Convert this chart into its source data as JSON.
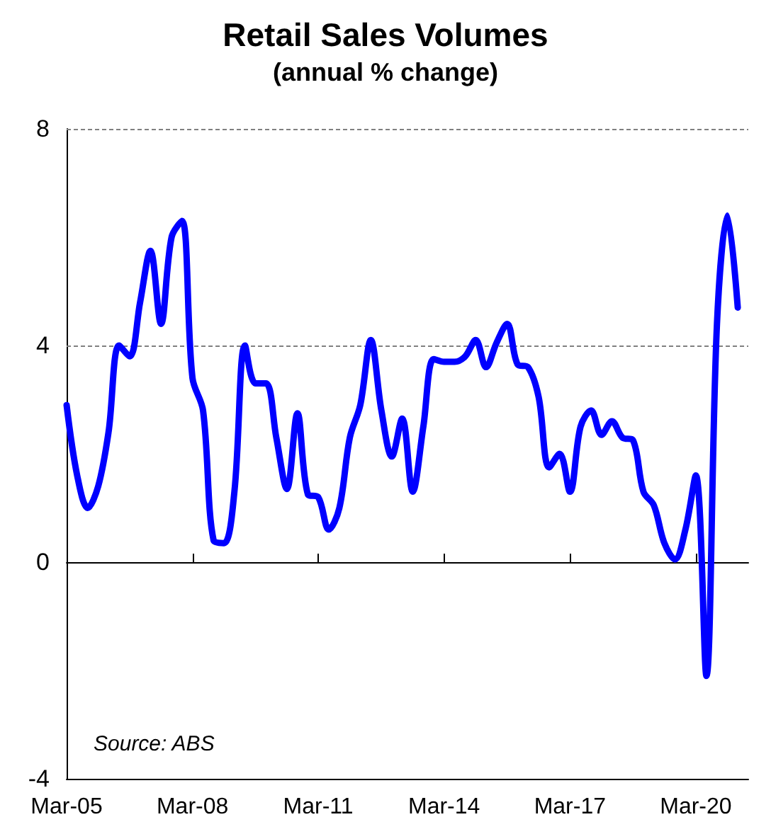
{
  "chart_data": {
    "type": "line",
    "title": "Retail Sales Volumes",
    "subtitle": "(annual % change)",
    "annotations": [
      "Source: ABS"
    ],
    "x": [
      "2005-03",
      "2005-06",
      "2005-09",
      "2005-12",
      "2006-03",
      "2006-06",
      "2006-09",
      "2006-12",
      "2007-03",
      "2007-06",
      "2007-09",
      "2007-12",
      "2008-03",
      "2008-06",
      "2008-09",
      "2008-12",
      "2009-03",
      "2009-06",
      "2009-09",
      "2009-12",
      "2010-03",
      "2010-06",
      "2010-09",
      "2010-12",
      "2011-03",
      "2011-06",
      "2011-09",
      "2011-12",
      "2012-03",
      "2012-06",
      "2012-09",
      "2012-12",
      "2013-03",
      "2013-06",
      "2013-09",
      "2013-12",
      "2014-03",
      "2014-06",
      "2014-09",
      "2014-12",
      "2015-03",
      "2015-06",
      "2015-09",
      "2015-12",
      "2016-03",
      "2016-06",
      "2016-09",
      "2016-12",
      "2017-03",
      "2017-06",
      "2017-09",
      "2017-12",
      "2018-03",
      "2018-06",
      "2018-09",
      "2018-12",
      "2019-03",
      "2019-06",
      "2019-09",
      "2019-12",
      "2020-03",
      "2020-06",
      "2020-09",
      "2020-12",
      "2021-03"
    ],
    "series": [
      {
        "color": "#0000ff",
        "values": [
          2.9,
          1.6,
          1.0,
          1.4,
          2.4,
          4.0,
          3.8,
          4.8,
          5.75,
          4.4,
          6.0,
          6.3,
          3.4,
          2.8,
          0.4,
          0.35,
          1.3,
          4.0,
          3.3,
          3.3,
          2.3,
          1.35,
          2.75,
          1.25,
          1.2,
          0.6,
          1.0,
          2.3,
          2.9,
          4.1,
          2.8,
          1.95,
          2.65,
          1.3,
          2.5,
          3.75,
          3.7,
          3.7,
          3.8,
          4.1,
          3.6,
          4.05,
          4.4,
          3.65,
          3.6,
          3.05,
          1.75,
          2.0,
          1.3,
          2.5,
          2.8,
          2.35,
          2.6,
          2.3,
          2.25,
          1.3,
          1.05,
          0.35,
          0.05,
          0.6,
          1.6,
          -2.1,
          4.4,
          6.4,
          4.7
        ]
      }
    ],
    "xlim": [
      "2005-03",
      "2021-06"
    ],
    "xticks": [
      {
        "value": "2005-03",
        "label": "Mar-05"
      },
      {
        "value": "2008-03",
        "label": "Mar-08"
      },
      {
        "value": "2011-03",
        "label": "Mar-11"
      },
      {
        "value": "2014-03",
        "label": "Mar-14"
      },
      {
        "value": "2017-03",
        "label": "Mar-17"
      },
      {
        "value": "2020-03",
        "label": "Mar-20"
      }
    ],
    "ylim": [
      -4,
      8
    ],
    "yticks": [
      -4,
      0,
      4,
      8
    ],
    "ref_lines": [
      {
        "axis": "y",
        "value": 4,
        "color": "#808080",
        "line_style": "dashed"
      },
      {
        "axis": "y",
        "value": 8,
        "color": "#808080",
        "line_style": "dashed"
      }
    ],
    "grid": false,
    "marker": "none",
    "line_style": "solid"
  }
}
